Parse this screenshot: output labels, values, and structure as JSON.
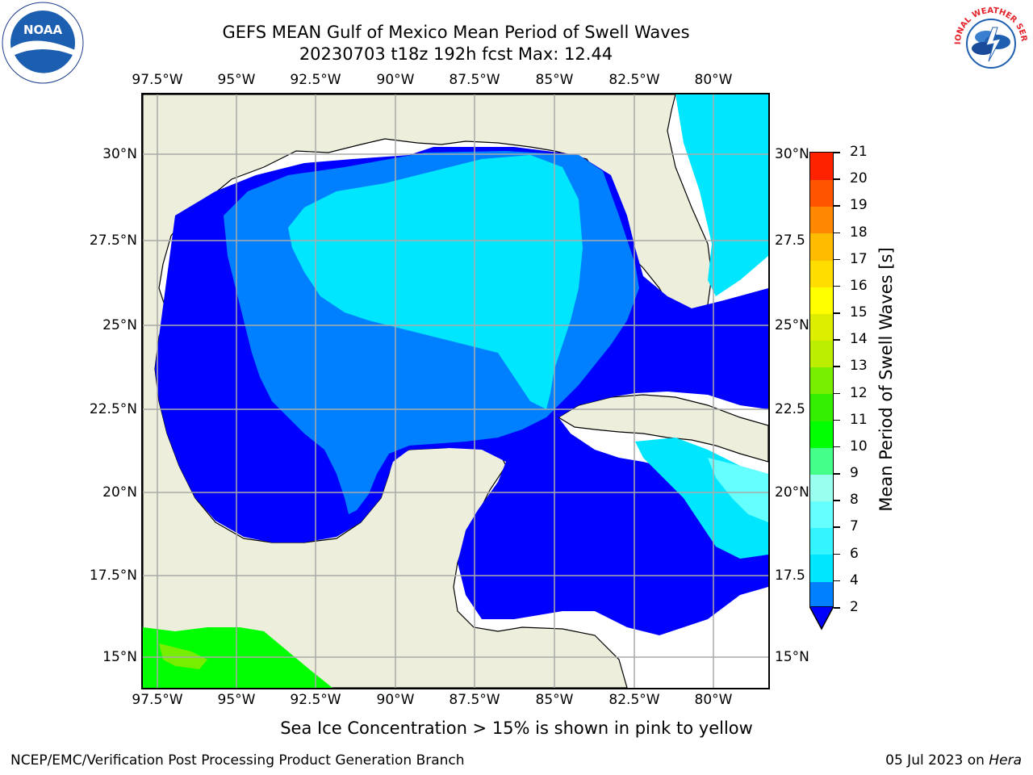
{
  "header": {
    "title_line1": "GEFS MEAN Gulf of Mexico Mean Period of Swell Waves",
    "title_line2": "20230703 t18z 192h fcst   Max: 12.44"
  },
  "map": {
    "lon_labels": [
      "97.5°W",
      "95°W",
      "92.5°W",
      "90°W",
      "87.5°W",
      "85°W",
      "82.5°W",
      "80°W"
    ],
    "lat_labels_left": [
      "30°N",
      "27.5°N",
      "25°N",
      "22.5°N",
      "20°N",
      "17.5°N",
      "15°N"
    ],
    "lat_labels_right": [
      "30°N",
      "27.5",
      "25°N",
      "22.5",
      "20°N",
      "17.5",
      "15°N"
    ],
    "lon_range": [
      -98,
      -78.3
    ],
    "lat_range": [
      14,
      31.9
    ],
    "land_color": "#eeeedc",
    "ocean_missing_color": "#ffffff"
  },
  "colorbar": {
    "label": "Mean Period of Swell Waves [s]",
    "ticks": [
      "2",
      "4",
      "6",
      "7",
      "8",
      "9",
      "10",
      "11",
      "12",
      "13",
      "14",
      "15",
      "16",
      "17",
      "18",
      "19",
      "20",
      "21"
    ],
    "colors": [
      "#0080ff",
      "#00e6ff",
      "#33f5ff",
      "#66ffff",
      "#99ffee",
      "#44ff88",
      "#00ff00",
      "#33ee00",
      "#77ee00",
      "#bbee00",
      "#ddee00",
      "#ffff00",
      "#ffdd00",
      "#ffbb00",
      "#ff8800",
      "#ff5500",
      "#ff2200"
    ],
    "under_color": "#0000ff"
  },
  "footer": {
    "note": "Sea Ice Concentration > 15% is shown in pink to yellow",
    "credit": "NCEP/EMC/Verification Post Processing Product Generation Branch",
    "date": "05 Jul 2023 on",
    "host": "Hera"
  },
  "logos": {
    "noaa_text": "NOAA",
    "nws_text": "NATIONAL WEATHER SERVICE"
  }
}
